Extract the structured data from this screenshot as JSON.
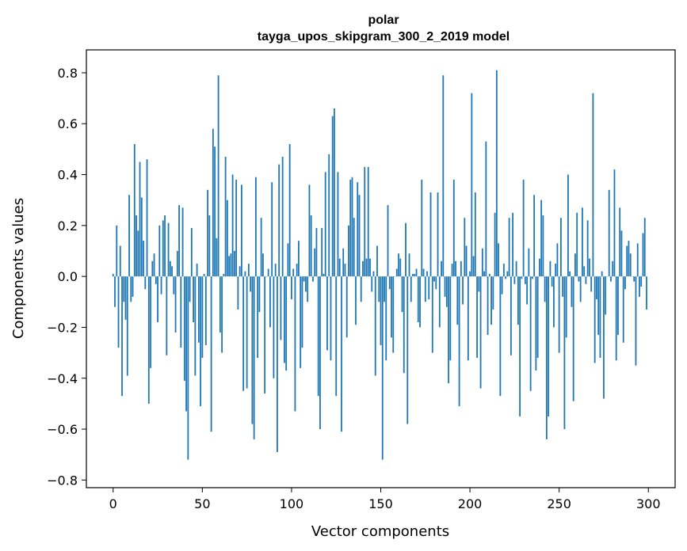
{
  "chart_data": {
    "type": "bar",
    "title": "polar",
    "subtitle": "tayga_upos_skipgram_300_2_2019 model",
    "xlabel": "Vector components",
    "ylabel": "Components values",
    "xlim": [
      -15,
      315
    ],
    "ylim": [
      -0.83,
      0.89
    ],
    "xticks": [
      0,
      50,
      100,
      150,
      200,
      250,
      300
    ],
    "yticks": [
      -0.8,
      -0.6,
      -0.4,
      -0.2,
      0.0,
      0.2,
      0.4,
      0.6,
      0.8
    ],
    "xtick_labels": [
      "0",
      "50",
      "100",
      "150",
      "200",
      "250",
      "300"
    ],
    "ytick_labels": [
      "−0.8",
      "−0.6",
      "−0.4",
      "−0.2",
      "0.0",
      "0.2",
      "0.4",
      "0.6",
      "0.8"
    ],
    "bar_color": "#1f77b4",
    "values": [
      0.01,
      -0.12,
      0.2,
      -0.28,
      0.12,
      -0.47,
      -0.1,
      -0.17,
      -0.39,
      0.32,
      -0.1,
      -0.08,
      0.52,
      0.24,
      0.18,
      0.45,
      0.31,
      0.14,
      -0.05,
      0.46,
      -0.5,
      -0.36,
      0.06,
      0.09,
      -0.03,
      -0.18,
      0.2,
      -0.07,
      0.22,
      0.24,
      -0.31,
      0.21,
      0.06,
      0.04,
      -0.07,
      -0.22,
      0.1,
      0.28,
      -0.28,
      0.27,
      -0.41,
      -0.53,
      -0.72,
      -0.1,
      0.19,
      -0.18,
      -0.39,
      0.05,
      -0.26,
      -0.51,
      -0.32,
      0.01,
      -0.27,
      0.34,
      0.24,
      -0.61,
      0.58,
      0.51,
      0.15,
      0.79,
      -0.22,
      -0.3,
      0.01,
      0.47,
      0.3,
      0.08,
      0.09,
      0.4,
      0.1,
      0.38,
      -0.13,
      0.04,
      0.36,
      -0.45,
      0.02,
      -0.44,
      0.05,
      -0.06,
      -0.58,
      -0.64,
      0.39,
      -0.32,
      -0.14,
      0.23,
      0.09,
      -0.46,
      0.0,
      0.03,
      -0.2,
      0.37,
      -0.4,
      0.05,
      -0.69,
      0.44,
      -0.25,
      0.47,
      -0.34,
      -0.37,
      0.13,
      0.52,
      -0.09,
      0.03,
      -0.53,
      0.05,
      0.14,
      -0.36,
      -0.28,
      -0.02,
      -0.06,
      -0.1,
      0.36,
      0.24,
      -0.02,
      0.11,
      0.19,
      -0.47,
      -0.6,
      0.19,
      0.01,
      0.41,
      -0.29,
      0.48,
      -0.33,
      0.63,
      0.66,
      -0.47,
      0.41,
      0.07,
      -0.61,
      0.11,
      0.05,
      -0.24,
      0.2,
      0.38,
      0.39,
      0.23,
      -0.19,
      0.37,
      0.32,
      -0.1,
      0.06,
      0.43,
      0.07,
      0.43,
      0.07,
      -0.06,
      0.02,
      -0.39,
      0.12,
      -0.1,
      -0.27,
      -0.72,
      -0.1,
      -0.33,
      0.28,
      -0.05,
      -0.24,
      -0.3,
      0.0,
      0.03,
      0.09,
      0.07,
      -0.14,
      -0.38,
      0.21,
      -0.58,
      0.09,
      -0.1,
      0.01,
      0.01,
      0.03,
      -0.18,
      -0.2,
      0.38,
      0.03,
      -0.1,
      0.02,
      -0.09,
      0.33,
      -0.3,
      -0.02,
      -0.05,
      0.33,
      -0.2,
      0.06,
      0.79,
      -0.08,
      -0.12,
      -0.42,
      -0.33,
      0.05,
      0.38,
      0.06,
      -0.19,
      -0.51,
      0.06,
      -0.11,
      0.23,
      0.12,
      -0.33,
      0.02,
      0.72,
      0.08,
      0.33,
      -0.32,
      -0.06,
      -0.44,
      0.11,
      0.02,
      0.53,
      -0.23,
      0.01,
      -0.19,
      -0.13,
      0.25,
      0.81,
      0.13,
      -0.47,
      -0.07,
      0.05,
      -0.01,
      0.02,
      0.23,
      -0.31,
      0.25,
      -0.03,
      0.06,
      -0.19,
      -0.55,
      -0.01,
      0.38,
      -0.03,
      -0.11,
      0.11,
      -0.45,
      -0.01,
      0.32,
      -0.37,
      -0.32,
      0.07,
      0.3,
      0.24,
      -0.1,
      -0.64,
      -0.55,
      0.06,
      -0.04,
      -0.2,
      0.05,
      0.13,
      -0.3,
      0.23,
      -0.08,
      -0.6,
      -0.24,
      0.4,
      0.02,
      -0.12,
      -0.49,
      0.09,
      0.25,
      -0.02,
      -0.1,
      0.27,
      0.04,
      -0.03,
      0.22,
      0.07,
      -0.06,
      0.72,
      -0.34,
      -0.09,
      -0.23,
      -0.32,
      0.02,
      -0.48,
      -0.15,
      0.0,
      0.34,
      -0.02,
      0.06,
      0.42,
      -0.33,
      -0.23,
      0.27,
      0.18,
      -0.26,
      -0.05,
      0.12,
      0.14,
      0.09,
      0.0,
      -0.02,
      -0.35,
      0.13,
      -0.08,
      -0.04,
      0.17,
      0.23,
      -0.13
    ]
  }
}
